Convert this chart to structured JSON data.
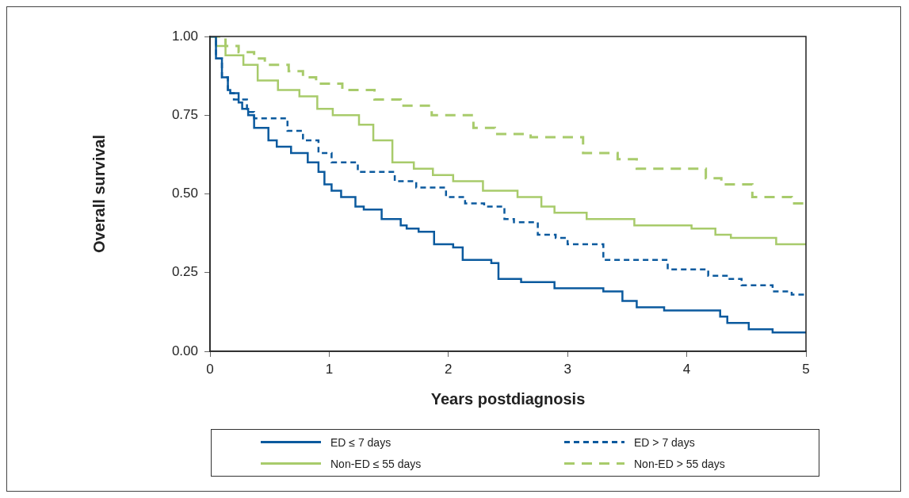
{
  "chart_data": {
    "type": "step",
    "xlabel": "Years postdiagnosis",
    "ylabel": "Overall survival",
    "xlim": [
      0,
      5
    ],
    "xticks": [
      0,
      1,
      2,
      3,
      4,
      5
    ],
    "ylim": [
      0,
      1
    ],
    "yticks": [
      {
        "value": 0,
        "label": "0.00"
      },
      {
        "value": 0.25,
        "label": "0.25"
      },
      {
        "value": 0.5,
        "label": "0.50"
      },
      {
        "value": 0.75,
        "label": "0.75"
      },
      {
        "value": 1,
        "label": "1.00"
      }
    ],
    "grid": false,
    "legend": "bottom",
    "marker": "none",
    "series": [
      {
        "name": "ED ≤ 7 days",
        "color": "#0b5a9e",
        "line_style": "solid",
        "x": [
          0,
          0.05,
          0.1,
          0.15,
          0.17,
          0.24,
          0.27,
          0.32,
          0.37,
          0.49,
          0.56,
          0.68,
          0.82,
          0.91,
          0.96,
          1.02,
          1.1,
          1.22,
          1.29,
          1.44,
          1.6,
          1.65,
          1.75,
          1.88,
          2.04,
          2.12,
          2.36,
          2.42,
          2.61,
          2.89,
          3.3,
          3.46,
          3.58,
          3.81,
          4.28,
          4.34,
          4.52,
          4.72,
          5
        ],
        "values": [
          1,
          0.93,
          0.87,
          0.83,
          0.82,
          0.79,
          0.77,
          0.75,
          0.71,
          0.67,
          0.65,
          0.63,
          0.6,
          0.57,
          0.53,
          0.51,
          0.49,
          0.46,
          0.45,
          0.42,
          0.4,
          0.39,
          0.38,
          0.34,
          0.33,
          0.29,
          0.28,
          0.23,
          0.22,
          0.2,
          0.19,
          0.16,
          0.14,
          0.13,
          0.11,
          0.09,
          0.07,
          0.06,
          0.06
        ]
      },
      {
        "name": "ED > 7 days",
        "color": "#0b5a9e",
        "line_style": "dashed",
        "x": [
          0,
          0.05,
          0.1,
          0.15,
          0.2,
          0.31,
          0.37,
          0.65,
          0.78,
          0.91,
          1.02,
          1.24,
          1.55,
          1.73,
          1.98,
          2.14,
          2.3,
          2.47,
          2.55,
          2.75,
          2.9,
          3.0,
          3.3,
          3.84,
          4.18,
          4.35,
          4.46,
          4.72,
          4.88,
          5
        ],
        "values": [
          1,
          0.93,
          0.87,
          0.82,
          0.8,
          0.76,
          0.74,
          0.7,
          0.67,
          0.63,
          0.6,
          0.57,
          0.54,
          0.52,
          0.49,
          0.47,
          0.46,
          0.42,
          0.41,
          0.37,
          0.36,
          0.34,
          0.29,
          0.26,
          0.24,
          0.23,
          0.21,
          0.19,
          0.18,
          0.18
        ]
      },
      {
        "name": "Non-ED ≤ 55 days",
        "color": "#a8cb6b",
        "line_style": "solid",
        "x": [
          0,
          0.05,
          0.13,
          0.28,
          0.4,
          0.57,
          0.75,
          0.9,
          1.03,
          1.25,
          1.37,
          1.53,
          1.71,
          1.87,
          2.04,
          2.29,
          2.58,
          2.78,
          2.89,
          3.16,
          3.56,
          4.04,
          4.24,
          4.37,
          4.75,
          4.93,
          5
        ],
        "values": [
          1,
          0.97,
          0.94,
          0.91,
          0.86,
          0.83,
          0.81,
          0.77,
          0.75,
          0.72,
          0.67,
          0.6,
          0.58,
          0.56,
          0.54,
          0.51,
          0.49,
          0.46,
          0.44,
          0.42,
          0.4,
          0.39,
          0.37,
          0.36,
          0.34,
          0.34,
          0.34
        ]
      },
      {
        "name": "Non-ED > 55 days",
        "color": "#a8cb6b",
        "line_style": "dashed",
        "x": [
          0,
          0.13,
          0.24,
          0.37,
          0.46,
          0.66,
          0.78,
          0.89,
          1.11,
          1.38,
          1.6,
          1.86,
          2.21,
          2.39,
          2.69,
          3.13,
          3.42,
          3.58,
          4.16,
          4.29,
          4.55,
          4.88,
          5
        ],
        "values": [
          1,
          0.97,
          0.95,
          0.93,
          0.91,
          0.89,
          0.87,
          0.85,
          0.83,
          0.8,
          0.78,
          0.75,
          0.71,
          0.69,
          0.68,
          0.63,
          0.61,
          0.58,
          0.55,
          0.53,
          0.49,
          0.47,
          0.47
        ]
      }
    ]
  }
}
